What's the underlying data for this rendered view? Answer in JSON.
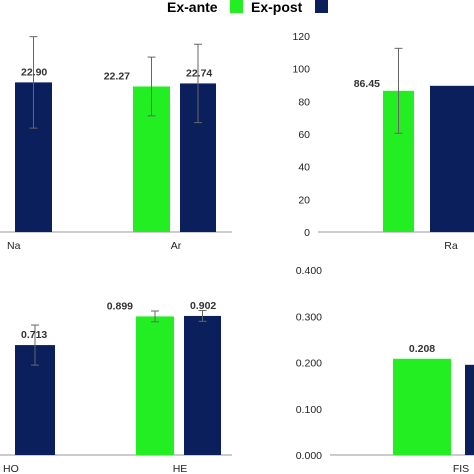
{
  "legend": {
    "items": [
      {
        "label": "Ex-ante",
        "color": "#22ee22"
      },
      {
        "label": "Ex-post",
        "color": "#0b1f5c"
      }
    ]
  },
  "colors": {
    "ex_ante": "#22ee22",
    "ex_post": "#0b1f5c",
    "axis": "#999999",
    "error_bar": "#666666"
  },
  "chart_data": [
    {
      "type": "bar",
      "panel": "top-left",
      "categories": [
        "Na",
        "Ar"
      ],
      "series": [
        {
          "name": "Ex-ante",
          "values": [
            null,
            22.27
          ],
          "error": [
            null,
            4.5
          ],
          "labels": [
            "",
            "22.27"
          ]
        },
        {
          "name": "Ex-post",
          "values": [
            22.9,
            22.74
          ],
          "error": [
            7.0,
            6.0
          ],
          "labels": [
            "22.90",
            "22.74"
          ]
        }
      ],
      "ylim": [
        0,
        30
      ],
      "grid": false,
      "legend_position": "top"
    },
    {
      "type": "bar",
      "panel": "top-right",
      "categories": [
        "Ra"
      ],
      "series": [
        {
          "name": "Ex-ante",
          "values": [
            86.45
          ],
          "error": [
            26
          ],
          "labels": [
            "86.45"
          ]
        },
        {
          "name": "Ex-post",
          "values": [
            89.5
          ],
          "error": [
            null
          ],
          "labels": [
            ""
          ]
        }
      ],
      "yticks": [
        "120",
        "100",
        "80",
        "60",
        "40",
        "20",
        "0"
      ],
      "ylim": [
        0,
        120
      ],
      "grid": false
    },
    {
      "type": "bar",
      "panel": "bottom-left",
      "categories": [
        "HO",
        "HE"
      ],
      "series": [
        {
          "name": "Ex-ante",
          "values": [
            null,
            0.899
          ],
          "error": [
            null,
            0.035
          ],
          "labels": [
            "",
            "0.899"
          ]
        },
        {
          "name": "Ex-post",
          "values": [
            0.713,
            0.902
          ],
          "error": [
            0.13,
            0.035
          ],
          "labels": [
            "0.713",
            "0.902"
          ]
        }
      ],
      "ylim": [
        0,
        1.2
      ],
      "grid": false
    },
    {
      "type": "bar",
      "panel": "bottom-right",
      "categories": [
        "FIS"
      ],
      "series": [
        {
          "name": "Ex-ante",
          "values": [
            0.208
          ],
          "error": [
            null
          ],
          "labels": [
            "0.208"
          ]
        },
        {
          "name": "Ex-post",
          "values": [
            0.195
          ],
          "error": [
            null
          ],
          "labels": [
            ""
          ]
        }
      ],
      "yticks": [
        "0.400",
        "0.300",
        "0.200",
        "0.100",
        "0.000"
      ],
      "ylim": [
        0,
        0.4
      ],
      "grid": false
    }
  ]
}
